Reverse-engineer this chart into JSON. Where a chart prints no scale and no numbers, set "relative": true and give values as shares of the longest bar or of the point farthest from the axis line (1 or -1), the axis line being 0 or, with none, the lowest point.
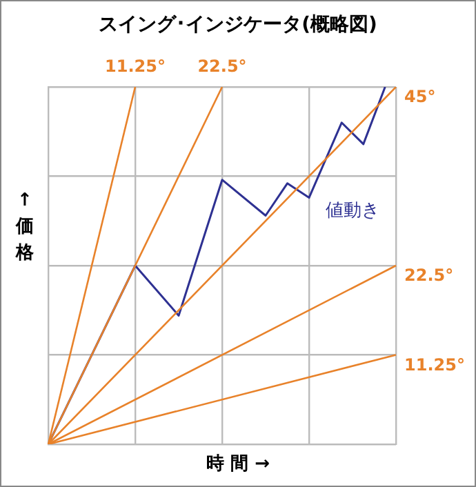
{
  "chart_data": {
    "type": "line",
    "title": "スイング･インジケータ(概略図)",
    "xlabel": "時 間 →",
    "ylabel": "↑価格",
    "relative": true,
    "grid": true,
    "legend": false,
    "tick_labels": false,
    "marker": "none",
    "line_style": "solid",
    "categories": [
      null,
      null,
      null,
      null,
      null,
      null,
      null,
      null,
      null,
      null,
      null,
      null,
      null,
      null,
      null,
      null,
      null,
      null,
      null,
      null,
      null,
      null,
      null,
      null,
      null,
      null,
      null,
      null,
      null,
      null,
      null,
      null,
      null
    ],
    "series": [
      {
        "color": "#e8822a",
        "values": [
          0,
          null,
          null,
          null,
          null,
          null,
          null,
          null,
          1,
          null,
          null,
          null,
          null,
          null,
          null,
          null,
          null,
          null,
          null,
          null,
          null,
          null,
          null,
          null,
          null,
          null,
          null,
          null,
          null,
          null,
          null,
          null,
          null
        ]
      },
      {
        "color": "#e8822a",
        "values": [
          0,
          null,
          null,
          null,
          null,
          null,
          null,
          null,
          null,
          null,
          null,
          null,
          null,
          null,
          null,
          null,
          1,
          null,
          null,
          null,
          null,
          null,
          null,
          null,
          null,
          null,
          null,
          null,
          null,
          null,
          null,
          null,
          null
        ]
      },
      {
        "color": "#e8822a",
        "values": [
          0,
          null,
          null,
          null,
          null,
          null,
          null,
          null,
          null,
          null,
          null,
          null,
          null,
          null,
          null,
          null,
          null,
          null,
          null,
          null,
          null,
          null,
          null,
          null,
          null,
          null,
          null,
          null,
          null,
          null,
          null,
          null,
          1
        ]
      },
      {
        "color": "#e8822a",
        "values": [
          0,
          null,
          null,
          null,
          null,
          null,
          null,
          null,
          null,
          null,
          null,
          null,
          null,
          null,
          null,
          null,
          null,
          null,
          null,
          null,
          null,
          null,
          null,
          null,
          null,
          null,
          null,
          null,
          null,
          null,
          null,
          null,
          0.5
        ]
      },
      {
        "color": "#e8822a",
        "values": [
          0,
          null,
          null,
          null,
          null,
          null,
          null,
          null,
          null,
          null,
          null,
          null,
          null,
          null,
          null,
          null,
          null,
          null,
          null,
          null,
          null,
          null,
          null,
          null,
          null,
          null,
          null,
          null,
          null,
          null,
          null,
          null,
          0.25
        ]
      },
      {
        "name": "値動き",
        "color": "#2e3192",
        "values": [
          0,
          null,
          null,
          null,
          null,
          null,
          null,
          null,
          0.5,
          null,
          null,
          null,
          0.36,
          null,
          null,
          null,
          0.74,
          null,
          null,
          null,
          0.64,
          null,
          0.73,
          null,
          0.69,
          null,
          null,
          0.9,
          null,
          0.84,
          null,
          1,
          null
        ]
      }
    ],
    "annotations": [
      "11.25°",
      "22.5°",
      "45°",
      "22.5°",
      "11.25°"
    ]
  }
}
